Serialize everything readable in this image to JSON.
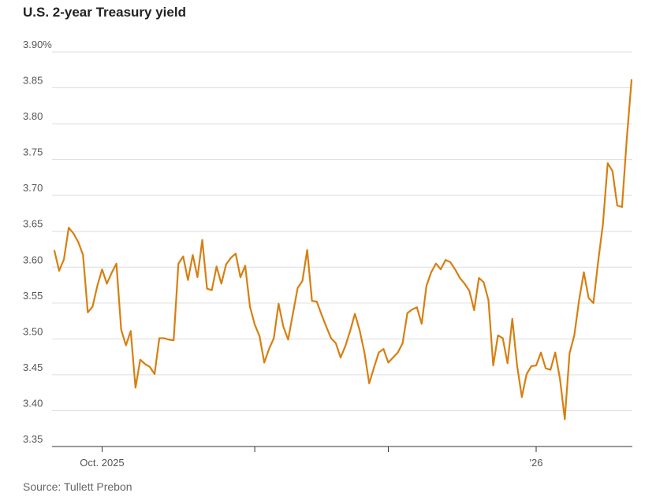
{
  "chart_data": {
    "type": "line",
    "title": "U.S. 2-year Treasury yield",
    "source": "Source: Tullett Prebon",
    "y_unit_suffix": "%",
    "ylim": [
      3.35,
      3.9
    ],
    "y_ticks": [
      {
        "value": 3.9,
        "label": "3.90%"
      },
      {
        "value": 3.85,
        "label": "3.85"
      },
      {
        "value": 3.8,
        "label": "3.80"
      },
      {
        "value": 3.75,
        "label": "3.75"
      },
      {
        "value": 3.7,
        "label": "3.70"
      },
      {
        "value": 3.65,
        "label": "3.65"
      },
      {
        "value": 3.6,
        "label": "3.60"
      },
      {
        "value": 3.55,
        "label": "3.55"
      },
      {
        "value": 3.5,
        "label": "3.50"
      },
      {
        "value": 3.45,
        "label": "3.45"
      },
      {
        "value": 3.4,
        "label": "3.40"
      },
      {
        "value": 3.35,
        "label": "3.35"
      }
    ],
    "x_ticks": [
      {
        "index": 10,
        "label": "Oct. 2025"
      },
      {
        "index": 42,
        "label": ""
      },
      {
        "index": 70,
        "label": ""
      },
      {
        "index": 101,
        "label": "'26"
      },
      {
        "index": 129,
        "label": ""
      },
      {
        "index": 157,
        "label": ""
      }
    ],
    "grid": true,
    "line_color": "#d77f10",
    "grid_color": "#dddddd",
    "series": [
      {
        "values": [
          3.623,
          3.595,
          3.611,
          3.655,
          3.647,
          3.635,
          3.617,
          3.537,
          3.545,
          3.574,
          3.597,
          3.577,
          3.592,
          3.605,
          3.513,
          3.491,
          3.511,
          3.432,
          3.471,
          3.465,
          3.461,
          3.451,
          3.501,
          3.501,
          3.499,
          3.498,
          3.605,
          3.615,
          3.582,
          3.617,
          3.586,
          3.638,
          3.57,
          3.568,
          3.601,
          3.577,
          3.604,
          3.613,
          3.619,
          3.586,
          3.602,
          3.545,
          3.52,
          3.504,
          3.467,
          3.486,
          3.501,
          3.549,
          3.517,
          3.499,
          3.535,
          3.571,
          3.581,
          3.624,
          3.553,
          3.552,
          3.534,
          3.517,
          3.501,
          3.494,
          3.474,
          3.49,
          3.511,
          3.535,
          3.512,
          3.481,
          3.438,
          3.46,
          3.481,
          3.486,
          3.467,
          3.474,
          3.481,
          3.494,
          3.536,
          3.541,
          3.544,
          3.521,
          3.574,
          3.593,
          3.605,
          3.597,
          3.61,
          3.607,
          3.597,
          3.585,
          3.577,
          3.567,
          3.54,
          3.585,
          3.579,
          3.554,
          3.463,
          3.505,
          3.501,
          3.466,
          3.528,
          3.463,
          3.419,
          3.451,
          3.462,
          3.463,
          3.481,
          3.459,
          3.457,
          3.481,
          3.444,
          3.388,
          3.48,
          3.505,
          3.554,
          3.593,
          3.557,
          3.55,
          3.608,
          3.66,
          3.745,
          3.734,
          3.686,
          3.684,
          3.779,
          3.861
        ]
      }
    ]
  }
}
